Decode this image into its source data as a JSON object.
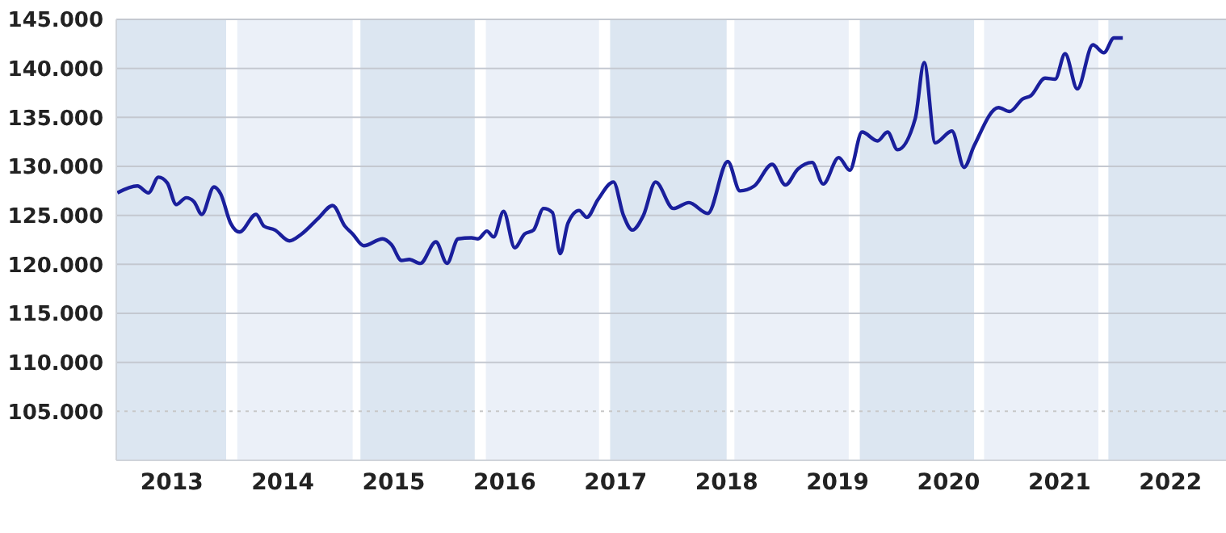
{
  "chart_data": {
    "type": "line",
    "x": [
      2013.01,
      2013.19,
      2013.29,
      2013.38,
      2013.46,
      2013.54,
      2013.63,
      2013.7,
      2013.77,
      2013.88,
      2013.94,
      2014.03,
      2014.11,
      2014.26,
      2014.33,
      2014.43,
      2014.56,
      2014.67,
      2014.82,
      2014.95,
      2015.06,
      2015.13,
      2015.23,
      2015.4,
      2015.48,
      2015.57,
      2015.64,
      2015.74,
      2015.88,
      2015.98,
      2016.08,
      2016.2,
      2016.26,
      2016.34,
      2016.4,
      2016.49,
      2016.59,
      2016.68,
      2016.76,
      2016.85,
      2016.93,
      2017.0,
      2017.07,
      2017.17,
      2017.24,
      2017.34,
      2017.48,
      2017.57,
      2017.65,
      2017.75,
      2017.86,
      2018.02,
      2018.16,
      2018.33,
      2018.51,
      2018.62,
      2018.75,
      2018.91,
      2019.03,
      2019.14,
      2019.27,
      2019.37,
      2019.51,
      2019.61,
      2019.72,
      2019.86,
      2019.95,
      2020.04,
      2020.2,
      2020.28,
      2020.38,
      2020.53,
      2020.64,
      2020.73,
      2020.95,
      2021.05,
      2021.17,
      2021.24,
      2021.37,
      2021.46,
      2021.55,
      2021.66,
      2021.8,
      2021.9,
      2021.99,
      2022.07
    ],
    "series": [
      {
        "color": "#1a1f9c",
        "values": [
          127.3,
          128.0,
          127.3,
          128.9,
          128.3,
          126.1,
          126.8,
          126.4,
          125.1,
          127.9,
          127.2,
          124.2,
          123.3,
          125.1,
          123.9,
          123.5,
          122.4,
          123.1,
          124.7,
          126.0,
          123.9,
          123.1,
          121.9,
          122.6,
          122.0,
          120.4,
          120.5,
          120.1,
          122.3,
          120.1,
          122.6,
          122.7,
          122.6,
          123.4,
          122.8,
          125.4,
          121.7,
          123.1,
          123.5,
          125.7,
          125.3,
          121.1,
          124.2,
          125.5,
          124.8,
          126.6,
          128.4,
          125.0,
          123.5,
          125.0,
          128.4,
          125.7,
          126.3,
          125.2,
          130.5,
          127.5,
          128.0,
          130.2,
          128.1,
          129.7,
          130.4,
          128.2,
          130.9,
          129.6,
          133.5,
          132.6,
          133.5,
          131.7,
          134.9,
          140.6,
          132.4,
          133.6,
          129.9,
          132.1,
          136.0,
          135.6,
          136.9,
          137.2,
          139.0,
          138.9,
          141.5,
          137.9,
          142.4,
          141.6,
          143.1,
          143.1
        ]
      }
    ],
    "xlim": [
      2013,
      2023
    ],
    "xticks": [
      {
        "value": 2013.5,
        "label": "2013"
      },
      {
        "value": 2014.5,
        "label": "2014"
      },
      {
        "value": 2015.5,
        "label": "2015"
      },
      {
        "value": 2016.5,
        "label": "2016"
      },
      {
        "value": 2017.5,
        "label": "2017"
      },
      {
        "value": 2018.5,
        "label": "2018"
      },
      {
        "value": 2019.5,
        "label": "2019"
      },
      {
        "value": 2020.5,
        "label": "2020"
      },
      {
        "value": 2021.5,
        "label": "2021"
      },
      {
        "value": 2022.5,
        "label": "2022"
      }
    ],
    "ylim": [
      100,
      145
    ],
    "yticks": [
      {
        "value": 105,
        "label": "105.000"
      },
      {
        "value": 110,
        "label": "110.000"
      },
      {
        "value": 115,
        "label": "115.000"
      },
      {
        "value": 120,
        "label": "120.000"
      },
      {
        "value": 125,
        "label": "125.000"
      },
      {
        "value": 130,
        "label": "130.000"
      },
      {
        "value": 135,
        "label": "135.000"
      },
      {
        "value": 140,
        "label": "140.000"
      },
      {
        "value": 145,
        "label": "145.000"
      }
    ],
    "grid": "y",
    "line_style": "solid",
    "bands": [
      {
        "axis": "x",
        "from": 2013.0,
        "to": 2013.99,
        "color": "#dce6f1"
      },
      {
        "axis": "x",
        "from": 2014.09,
        "to": 2015.13,
        "color": "#ebf0f8"
      },
      {
        "axis": "x",
        "from": 2015.2,
        "to": 2016.23,
        "color": "#dce6f1"
      },
      {
        "axis": "x",
        "from": 2016.33,
        "to": 2017.35,
        "color": "#ebf0f8"
      },
      {
        "axis": "x",
        "from": 2017.45,
        "to": 2018.5,
        "color": "#dce6f1"
      },
      {
        "axis": "x",
        "from": 2018.57,
        "to": 2019.6,
        "color": "#ebf0f8"
      },
      {
        "axis": "x",
        "from": 2019.7,
        "to": 2020.73,
        "color": "#dce6f1"
      },
      {
        "axis": "x",
        "from": 2020.82,
        "to": 2021.85,
        "color": "#ebf0f8"
      },
      {
        "axis": "x",
        "from": 2021.94,
        "to": 2023.0,
        "color": "#dce6f1"
      }
    ],
    "ref_lines": [
      {
        "axis": "y",
        "value": 105,
        "color": "#c8c8c8",
        "line_style": "dotted"
      }
    ]
  }
}
